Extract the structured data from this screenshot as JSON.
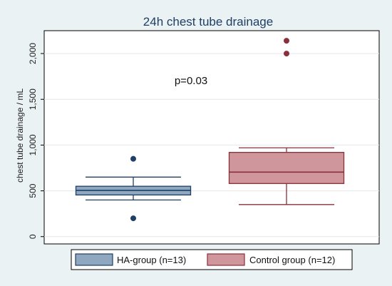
{
  "chart_data": {
    "type": "boxplot",
    "title": "24h chest tube drainage",
    "xlabel": "",
    "ylabel": "chest tube drainage / mL",
    "ylim": [
      -80,
      2250
    ],
    "yticks": [
      0,
      500,
      1000,
      1500,
      2000
    ],
    "ytick_labels": [
      "0",
      "500",
      "1,000",
      "1,500",
      "2,000"
    ],
    "grid": true,
    "legend_position": "bottom",
    "annotation": "p=0.03",
    "series": [
      {
        "name": "HA-group (n=13)",
        "color": "#8fa7bf",
        "edge_color": "#1f3f66",
        "whisker_low": 400,
        "q1": 455,
        "median": 505,
        "q3": 550,
        "whisker_high": 650,
        "outliers": [
          850,
          200
        ]
      },
      {
        "name": "Control group (n=12)",
        "color": "#cf979c",
        "edge_color": "#8b2f3a",
        "whisker_low": 350,
        "q1": 580,
        "median": 705,
        "q3": 920,
        "whisker_high": 970,
        "outliers": [
          2000,
          2140
        ]
      }
    ]
  }
}
